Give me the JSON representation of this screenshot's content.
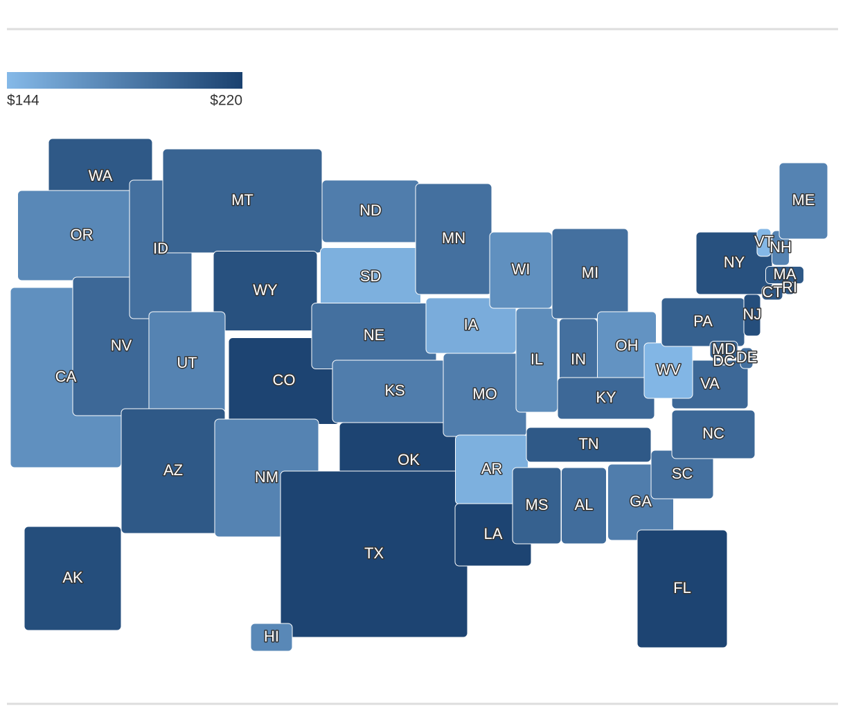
{
  "chart_data": {
    "type": "choropleth",
    "min_color": "#85b9e8",
    "max_color": "#1a416f",
    "legend_ticks": [
      {
        "value": 144,
        "label": "$144"
      },
      {
        "value": 220,
        "label": "$220"
      }
    ],
    "states": [
      {
        "name": "WA",
        "value": 205
      },
      {
        "name": "OR",
        "value": 175
      },
      {
        "name": "CA",
        "value": 170
      },
      {
        "name": "NV",
        "value": 195
      },
      {
        "name": "ID",
        "value": 190
      },
      {
        "name": "MT",
        "value": 198
      },
      {
        "name": "WY",
        "value": 210
      },
      {
        "name": "UT",
        "value": 178
      },
      {
        "name": "AZ",
        "value": 205
      },
      {
        "name": "CO",
        "value": 218
      },
      {
        "name": "NM",
        "value": 178
      },
      {
        "name": "ND",
        "value": 182
      },
      {
        "name": "SD",
        "value": 150
      },
      {
        "name": "NE",
        "value": 190
      },
      {
        "name": "KS",
        "value": 182
      },
      {
        "name": "OK",
        "value": 218
      },
      {
        "name": "TX",
        "value": 218
      },
      {
        "name": "MN",
        "value": 190
      },
      {
        "name": "IA",
        "value": 152
      },
      {
        "name": "MO",
        "value": 182
      },
      {
        "name": "AR",
        "value": 150
      },
      {
        "name": "LA",
        "value": 218
      },
      {
        "name": "WI",
        "value": 170
      },
      {
        "name": "IL",
        "value": 172
      },
      {
        "name": "MI",
        "value": 190
      },
      {
        "name": "IN",
        "value": 190
      },
      {
        "name": "OH",
        "value": 168
      },
      {
        "name": "KY",
        "value": 195
      },
      {
        "name": "TN",
        "value": 205
      },
      {
        "name": "MS",
        "value": 200
      },
      {
        "name": "AL",
        "value": 192
      },
      {
        "name": "GA",
        "value": 182
      },
      {
        "name": "FL",
        "value": 218
      },
      {
        "name": "SC",
        "value": 190
      },
      {
        "name": "NC",
        "value": 195
      },
      {
        "name": "VA",
        "value": 195
      },
      {
        "name": "WV",
        "value": 146
      },
      {
        "name": "PA",
        "value": 200
      },
      {
        "name": "NY",
        "value": 210
      },
      {
        "name": "VT",
        "value": 145
      },
      {
        "name": "NH",
        "value": 178
      },
      {
        "name": "ME",
        "value": 178
      },
      {
        "name": "MA",
        "value": 205
      },
      {
        "name": "CT",
        "value": 205
      },
      {
        "name": "RI",
        "value": 205
      },
      {
        "name": "NJ",
        "value": 212
      },
      {
        "name": "DE",
        "value": 190
      },
      {
        "name": "MD",
        "value": 200
      },
      {
        "name": "DC",
        "value": 190
      },
      {
        "name": "AK",
        "value": 212
      },
      {
        "name": "HI",
        "value": 175
      }
    ]
  }
}
